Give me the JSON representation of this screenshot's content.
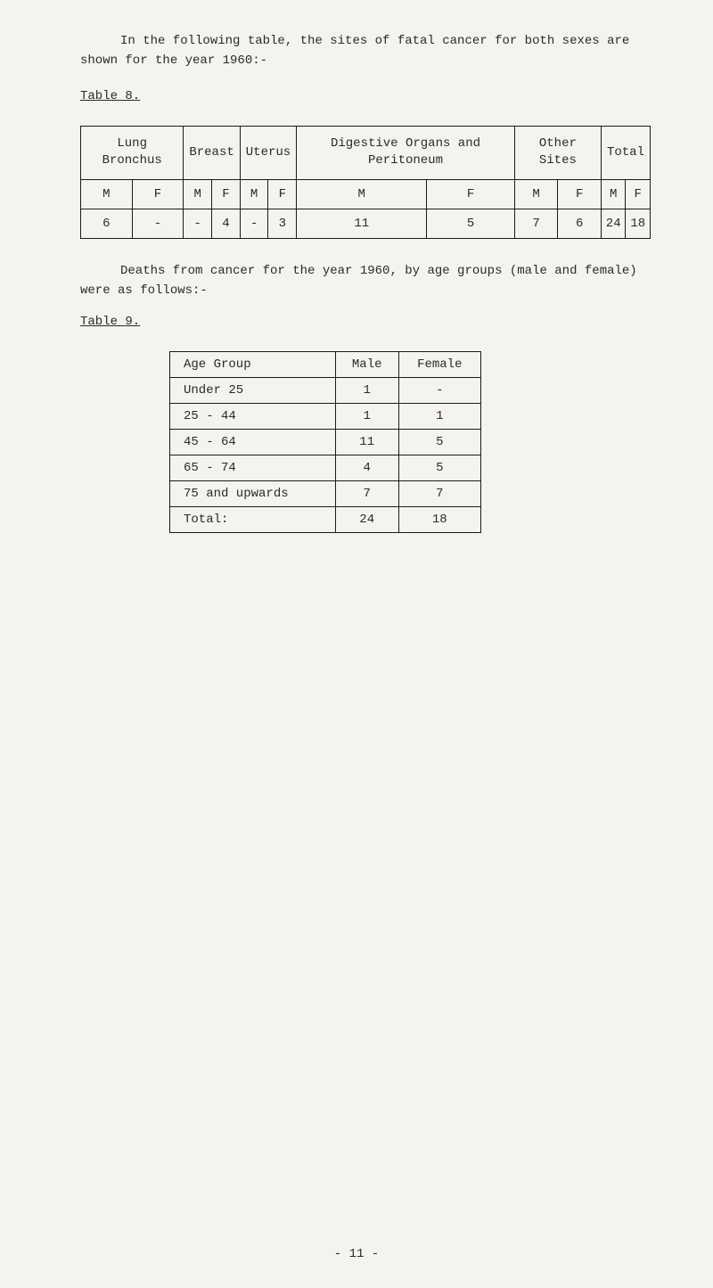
{
  "intro": "In the following table, the sites of fatal cancer for both sexes are shown for the year 1960:-",
  "table8_label": "Table 8.",
  "table8": {
    "headers_group": [
      {
        "label": "Lung Bronchus",
        "span": 2
      },
      {
        "label": "Breast",
        "span": 2
      },
      {
        "label": "Uterus",
        "span": 2
      },
      {
        "label": "Digestive Organs and Peritoneum",
        "span": 2
      },
      {
        "label": "Other Sites",
        "span": 2
      },
      {
        "label": "Total",
        "span": 2
      }
    ],
    "subheaders": [
      "M",
      "F",
      "M",
      "F",
      "M",
      "F",
      "M",
      "F",
      "M",
      "F",
      "M",
      "F"
    ],
    "row": [
      "6",
      "-",
      "-",
      "4",
      "-",
      "3",
      "11",
      "5",
      "7",
      "6",
      "24",
      "18"
    ]
  },
  "para2": "Deaths from cancer for the year 1960, by age groups (male and female) were as follows:-",
  "table9_label": "Table 9.",
  "table9": {
    "headers": [
      "Age Group",
      "Male",
      "Female"
    ],
    "rows": [
      [
        "Under 25",
        "1",
        "-"
      ],
      [
        "25 - 44",
        "1",
        "1"
      ],
      [
        "45 - 64",
        "11",
        "5"
      ],
      [
        "65 - 74",
        "4",
        "5"
      ],
      [
        "75 and upwards",
        "7",
        "7"
      ],
      [
        "Total:",
        "24",
        "18"
      ]
    ]
  },
  "page_number": "- 11 -",
  "colors": {
    "background": "#f5f3ed",
    "text": "#2a2a2a",
    "border": "#1a1a1a"
  }
}
